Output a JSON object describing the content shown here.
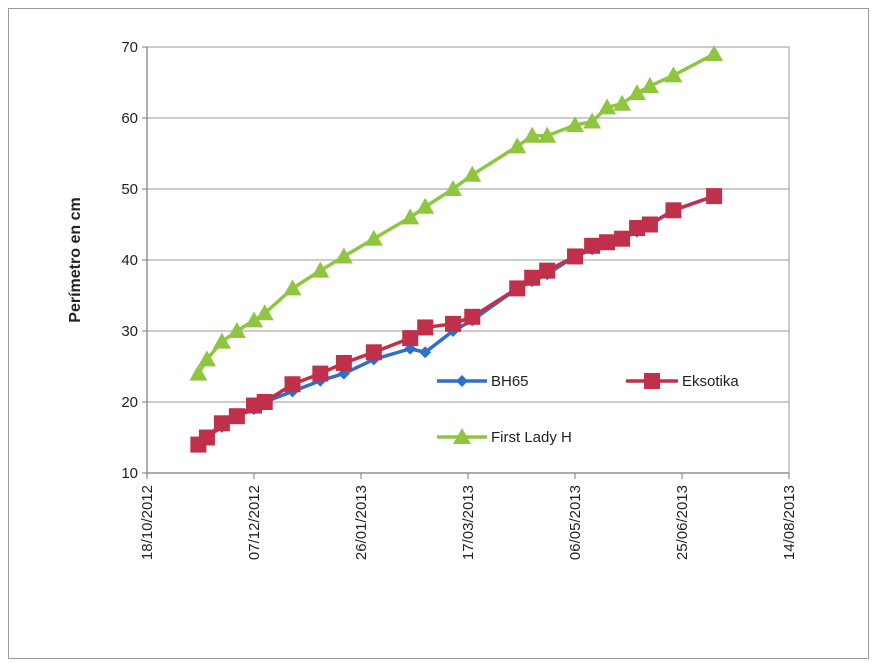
{
  "chart_data": {
    "type": "line",
    "title": "",
    "xlabel": "",
    "ylabel": "Perímetro en cm",
    "x_axis_kind": "date",
    "xlim": [
      "2012-10-18",
      "2013-08-14"
    ],
    "ylim": [
      10,
      70
    ],
    "y_ticks": [
      10,
      20,
      30,
      40,
      50,
      60,
      70
    ],
    "x_ticks": [
      "18/10/2012",
      "07/12/2012",
      "26/01/2013",
      "17/03/2013",
      "06/05/2013",
      "25/06/2013",
      "14/08/2013"
    ],
    "x_tick_dates": [
      "2012-10-18",
      "2012-12-07",
      "2013-01-26",
      "2013-03-17",
      "2013-05-06",
      "2013-06-25",
      "2013-08-14"
    ],
    "grid": "horizontal",
    "legend_placement": "inside-bottom-right",
    "series": [
      {
        "name": "BH65",
        "color": "#2f6fc7",
        "marker": "diamond",
        "points": [
          {
            "x": "2012-11-11",
            "y": 14
          },
          {
            "x": "2012-11-15",
            "y": 15
          },
          {
            "x": "2012-11-22",
            "y": 16.5
          },
          {
            "x": "2012-11-29",
            "y": 18
          },
          {
            "x": "2012-12-07",
            "y": 19
          },
          {
            "x": "2012-12-12",
            "y": 20
          },
          {
            "x": "2012-12-25",
            "y": 21.5
          },
          {
            "x": "2013-01-07",
            "y": 23
          },
          {
            "x": "2013-01-18",
            "y": 24
          },
          {
            "x": "2013-02-01",
            "y": 26
          },
          {
            "x": "2013-02-18",
            "y": 27.5
          },
          {
            "x": "2013-02-25",
            "y": 27
          },
          {
            "x": "2013-03-10",
            "y": 30
          },
          {
            "x": "2013-03-19",
            "y": 31.5
          },
          {
            "x": "2013-04-09",
            "y": 36
          },
          {
            "x": "2013-04-16",
            "y": 37
          },
          {
            "x": "2013-04-23",
            "y": 38
          },
          {
            "x": "2013-05-06",
            "y": 40.5
          },
          {
            "x": "2013-05-14",
            "y": 41.5
          },
          {
            "x": "2013-05-21",
            "y": 42.5
          },
          {
            "x": "2013-05-28",
            "y": 43
          },
          {
            "x": "2013-06-04",
            "y": 44
          },
          {
            "x": "2013-06-10",
            "y": 45
          },
          {
            "x": "2013-06-21",
            "y": 47
          },
          {
            "x": "2013-07-10",
            "y": 49
          }
        ]
      },
      {
        "name": "Eksotika",
        "color": "#c0304a",
        "marker": "square",
        "points": [
          {
            "x": "2012-11-11",
            "y": 14
          },
          {
            "x": "2012-11-15",
            "y": 15
          },
          {
            "x": "2012-11-22",
            "y": 17
          },
          {
            "x": "2012-11-29",
            "y": 18
          },
          {
            "x": "2012-12-07",
            "y": 19.5
          },
          {
            "x": "2012-12-12",
            "y": 20
          },
          {
            "x": "2012-12-25",
            "y": 22.5
          },
          {
            "x": "2013-01-07",
            "y": 24
          },
          {
            "x": "2013-01-18",
            "y": 25.5
          },
          {
            "x": "2013-02-01",
            "y": 27
          },
          {
            "x": "2013-02-18",
            "y": 29
          },
          {
            "x": "2013-02-25",
            "y": 30.5
          },
          {
            "x": "2013-03-10",
            "y": 31
          },
          {
            "x": "2013-03-19",
            "y": 32
          },
          {
            "x": "2013-04-09",
            "y": 36
          },
          {
            "x": "2013-04-16",
            "y": 37.5
          },
          {
            "x": "2013-04-23",
            "y": 38.5
          },
          {
            "x": "2013-05-06",
            "y": 40.5
          },
          {
            "x": "2013-05-14",
            "y": 42
          },
          {
            "x": "2013-05-21",
            "y": 42.5
          },
          {
            "x": "2013-05-28",
            "y": 43
          },
          {
            "x": "2013-06-04",
            "y": 44.5
          },
          {
            "x": "2013-06-10",
            "y": 45
          },
          {
            "x": "2013-06-21",
            "y": 47
          },
          {
            "x": "2013-07-10",
            "y": 49
          }
        ]
      },
      {
        "name": "First Lady H",
        "color": "#8fc63f",
        "marker": "triangle",
        "points": [
          {
            "x": "2012-11-11",
            "y": 24
          },
          {
            "x": "2012-11-15",
            "y": 26
          },
          {
            "x": "2012-11-22",
            "y": 28.5
          },
          {
            "x": "2012-11-29",
            "y": 30
          },
          {
            "x": "2012-12-07",
            "y": 31.5
          },
          {
            "x": "2012-12-12",
            "y": 32.5
          },
          {
            "x": "2012-12-25",
            "y": 36
          },
          {
            "x": "2013-01-07",
            "y": 38.5
          },
          {
            "x": "2013-01-18",
            "y": 40.5
          },
          {
            "x": "2013-02-01",
            "y": 43
          },
          {
            "x": "2013-02-18",
            "y": 46
          },
          {
            "x": "2013-02-25",
            "y": 47.5
          },
          {
            "x": "2013-03-10",
            "y": 50
          },
          {
            "x": "2013-03-19",
            "y": 52
          },
          {
            "x": "2013-04-09",
            "y": 56
          },
          {
            "x": "2013-04-16",
            "y": 57.5
          },
          {
            "x": "2013-04-23",
            "y": 57.5
          },
          {
            "x": "2013-05-06",
            "y": 59
          },
          {
            "x": "2013-05-14",
            "y": 59.5
          },
          {
            "x": "2013-05-21",
            "y": 61.5
          },
          {
            "x": "2013-05-28",
            "y": 62
          },
          {
            "x": "2013-06-04",
            "y": 63.5
          },
          {
            "x": "2013-06-10",
            "y": 64.5
          },
          {
            "x": "2013-06-21",
            "y": 66
          },
          {
            "x": "2013-07-10",
            "y": 69
          }
        ]
      }
    ]
  }
}
